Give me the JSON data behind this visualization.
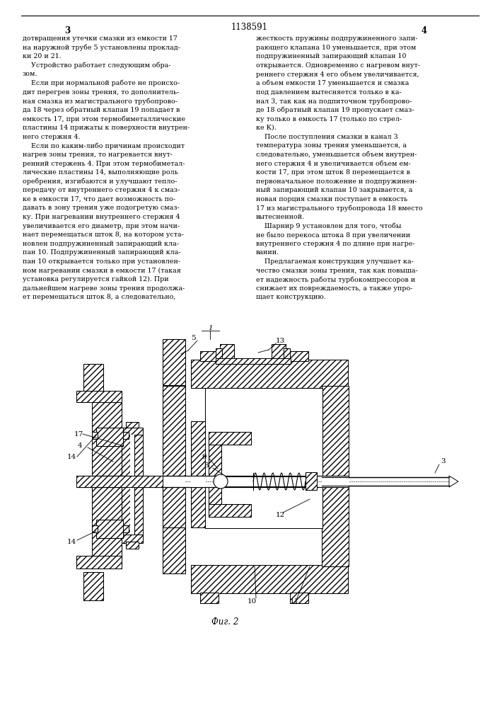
{
  "page_number_center": "1138591",
  "page_number_left": "3",
  "page_number_right": "4",
  "col1_lines": [
    "дотвращения утечки смазки из емкости 17",
    "на наружной трубе 5 установлены проклад-",
    "ки 20 и 21.",
    "    Устройство работает следующим обра-",
    "зом.",
    "    Если при нормальной работе не происхо-",
    "дит перегрев зоны трения, то дополнитель-",
    "ная смазка из магистрального трубопрово-",
    "да 18 через обратный клапан 19 попадает в",
    "емкость 17, при этом термобиметаллические",
    "пластины 14 прижаты к поверхности внутрен-",
    "него стержня 4.",
    "    Если по каким-либо причинам происходит",
    "нагрев зоны трения, то нагревается внут-",
    "ренний стержень 4. При этом термобиметал-",
    "лические пластины 14, выполняющие роль",
    "оребрения, изгибаются и улучшают тепло-",
    "передачу от внутреннего стержня 4 к смаз-",
    "ке в емкости 17, что дает возможность по-",
    "давать в зону трения уже подогретую смаз-",
    "ку. При нагревании внутреннего стержня 4",
    "увеличивается его диаметр, при этом начи-",
    "нает перемещаться шток 8, на котором уста-",
    "новлен подпружиненный запирающий кла-",
    "пан 10. Подпружиненный запирающий кла-",
    "пан 10 открывается только при установлен-",
    "ном нагревании смазки в емкости 17 (такая",
    "установка регулируется гайкой 12). При",
    "дальнейшем нагреве зоны трения продолжа-",
    "ет перемещаться шток 8, а следовательно,"
  ],
  "col2_lines": [
    "жесткость пружины подпружиненного запи-",
    "рающего клапана 10 уменьшается, при этом",
    "подпружиненный запирающий клапан 10",
    "открывается. Одновременно с нагревом внут-",
    "реннего стержня 4 его объем увеличивается,",
    "а объем емкости 17 уменьшается и смазка",
    "под давлением вытесняется только в ка-",
    "нал 3, так как на подпиточном трубопрово-",
    "де 18 обратный клапан 19 пропускает смаз-",
    "ку только в емкость 17 (только по стрел-",
    "ке К).",
    "    После поступления смазки в канал 3",
    "температура зоны трения уменьшается, а",
    "следовательно, уменьшается объем внутрен-",
    "него стержня 4 и увеличивается объем ем-",
    "кости 17, при этом шток 8 перемещается в",
    "первоначальное положение и подпружинен-",
    "ный запирающий клапан 10 закрывается, а",
    "новая порция смазки поступает в емкость",
    "17 из магистрального трубопровода 18 вместо",
    "вытесненной.",
    "    Шарнир 9 установлен для того, чтобы",
    "не было перекоса штока 8 при увеличении",
    "внутреннего стержня 4 по длине при нагре-",
    "вании.",
    "    Предлагаемая конструкция улучшает ка-",
    "чество смазки зоны трения, так как повыша-",
    "ет надежность работы турбокомпрессоров и",
    "снижает их повреждаемость, а также упро-",
    "щает конструкцию."
  ],
  "fig_caption": "Фиг. 2",
  "background_color": "#ffffff",
  "text_color": "#000000"
}
